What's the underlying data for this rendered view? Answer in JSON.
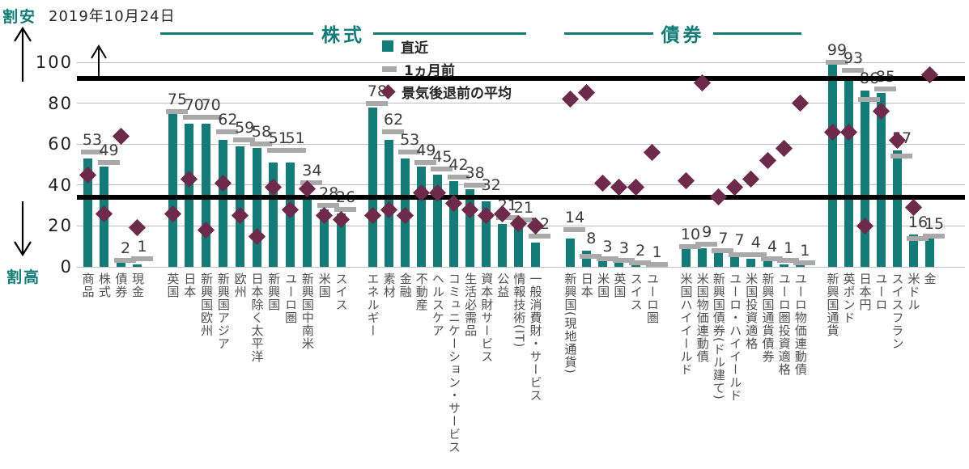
{
  "date_label": "2019年10月24日",
  "y_axis": {
    "cheap_label": "割安",
    "expensive_label": "割高",
    "ticks": [
      100,
      80,
      60,
      40,
      20,
      0
    ]
  },
  "legend": {
    "recent": "直近",
    "month_ago": "1ヵ月前",
    "pre_recession_avg": "景気後退前の平均"
  },
  "colors": {
    "teal": "#117c78",
    "gray": "#a9a9a9",
    "maroon": "#6e2a4b",
    "grid": "#bfbfbf",
    "threshold": "#000000"
  },
  "chart_data": {
    "type": "bar",
    "ylim": [
      0,
      100
    ],
    "grid": true,
    "threshold_lines": [
      92,
      34
    ],
    "series": [
      "直近",
      "1ヵ月前",
      "景気後退前の平均"
    ],
    "section_headers": [
      {
        "label": "株式",
        "x1": 198,
        "x2": 650
      },
      {
        "label": "債券",
        "x1": 697,
        "x2": 990
      }
    ],
    "groups": [
      {
        "start_x": 108,
        "step": 20.5,
        "items": [
          {
            "label": "商品",
            "recent": 53,
            "month_ago": 56,
            "avg": 45
          },
          {
            "label": "株式",
            "recent": 49,
            "month_ago": 51,
            "avg": 26
          },
          {
            "label": "債券",
            "recent": 2,
            "month_ago": 3,
            "avg": 64
          },
          {
            "label": "現金",
            "recent": 1,
            "month_ago": 4,
            "avg": 19
          }
        ]
      },
      {
        "start_x": 213,
        "step": 20.8,
        "items": [
          {
            "label": "英国",
            "recent": 75,
            "month_ago": 76,
            "avg": 26
          },
          {
            "label": "日本",
            "recent": 70,
            "month_ago": 73,
            "avg": 43
          },
          {
            "label": "新興国欧州",
            "recent": 70,
            "month_ago": 73,
            "avg": 18
          },
          {
            "label": "新興国アジア",
            "recent": 62,
            "month_ago": 66,
            "avg": 41
          },
          {
            "label": "欧州",
            "recent": 59,
            "month_ago": 62,
            "avg": 25
          },
          {
            "label": "日本除く太平洋",
            "recent": 58,
            "month_ago": 60,
            "avg": 15
          },
          {
            "label": "新興国",
            "recent": 51,
            "month_ago": 57,
            "avg": 39
          },
          {
            "label": "ユーロ圏",
            "recent": 51,
            "month_ago": 57,
            "avg": 28
          },
          {
            "label": "新興国中南米",
            "recent": 34,
            "month_ago": 41,
            "avg": 38
          },
          {
            "label": "米国",
            "recent": 28,
            "month_ago": 30,
            "avg": 25
          },
          {
            "label": "スイス",
            "recent": 26,
            "month_ago": 28,
            "avg": 23
          }
        ]
      },
      {
        "start_x": 460,
        "step": 20.1,
        "items": [
          {
            "label": "エネルギー",
            "recent": 78,
            "month_ago": 80,
            "avg": 25
          },
          {
            "label": "素材",
            "recent": 62,
            "month_ago": 66,
            "avg": 28
          },
          {
            "label": "金融",
            "recent": 53,
            "month_ago": 56,
            "avg": 25
          },
          {
            "label": "不動産",
            "recent": 49,
            "month_ago": 51,
            "avg": 36
          },
          {
            "label": "ヘルスケア",
            "recent": 45,
            "month_ago": 48,
            "avg": 36
          },
          {
            "label": "コミュニケーション・サービス",
            "recent": 42,
            "month_ago": 44,
            "avg": 31
          },
          {
            "label": "生活必需品",
            "recent": 38,
            "month_ago": 40,
            "avg": 28
          },
          {
            "label": "資本財サービス",
            "recent": 32,
            "month_ago": 34,
            "avg": 25
          },
          {
            "label": "公益",
            "recent": 21,
            "month_ago": 24,
            "avg": 26
          },
          {
            "label": "情報技術(IT)",
            "recent": 21,
            "month_ago": 23,
            "avg": 21
          },
          {
            "label": "一般消費財・サービス",
            "recent": 12,
            "month_ago": 15,
            "avg": 20
          }
        ]
      },
      {
        "start_x": 704,
        "step": 20.3,
        "items": [
          {
            "label": "新興国(現地通貨)",
            "recent": 14,
            "month_ago": 18,
            "avg": 82
          },
          {
            "label": "日本",
            "recent": 8,
            "month_ago": 5,
            "avg": 85
          },
          {
            "label": "米国",
            "recent": 3,
            "month_ago": 4,
            "avg": 41
          },
          {
            "label": "英国",
            "recent": 3,
            "month_ago": 3,
            "avg": 39
          },
          {
            "label": "スイス",
            "recent": 2,
            "month_ago": 2,
            "avg": 39
          },
          {
            "label": "ユーロ圏",
            "recent": 1,
            "month_ago": 1,
            "avg": 56
          }
        ]
      },
      {
        "start_x": 847,
        "step": 20.2,
        "items": [
          {
            "label": "米国ハイイールド",
            "recent": 10,
            "month_ago": 10,
            "avg": 42
          },
          {
            "label": "米国物価連動債",
            "recent": 9,
            "month_ago": 11,
            "avg": 90
          },
          {
            "label": "新興国債券(ドル建て)",
            "recent": 7,
            "month_ago": 8,
            "avg": 34
          },
          {
            "label": "ユーロ・ハイイールド",
            "recent": 7,
            "month_ago": 6,
            "avg": 39
          },
          {
            "label": "米国投資適格",
            "recent": 4,
            "month_ago": 6,
            "avg": 43
          },
          {
            "label": "新興国通貨債券",
            "recent": 4,
            "month_ago": 4,
            "avg": 52
          },
          {
            "label": "ユーロ圏投資適格",
            "recent": 1,
            "month_ago": 3,
            "avg": 58
          },
          {
            "label": "ユーロ物価連動債",
            "recent": 1,
            "month_ago": 2,
            "avg": 80
          }
        ]
      },
      {
        "start_x": 1028,
        "step": 20,
        "items": [
          {
            "label": "新興国通貨",
            "recent": 99,
            "month_ago": 100,
            "avg": 66
          },
          {
            "label": "英ポンド",
            "recent": 93,
            "month_ago": 96,
            "avg": 66
          },
          {
            "label": "日本円",
            "recent": 86,
            "month_ago": 82,
            "avg": 20
          },
          {
            "label": "ユーロ",
            "recent": 85,
            "month_ago": 87,
            "avg": 76
          },
          {
            "label": "スイスフラン",
            "recent": 57,
            "month_ago": 54,
            "avg": 62
          },
          {
            "label": "米ドル",
            "recent": 16,
            "month_ago": 14,
            "avg": 29
          },
          {
            "label": "金",
            "recent": 15,
            "month_ago": 15,
            "avg": 94
          }
        ]
      }
    ]
  }
}
